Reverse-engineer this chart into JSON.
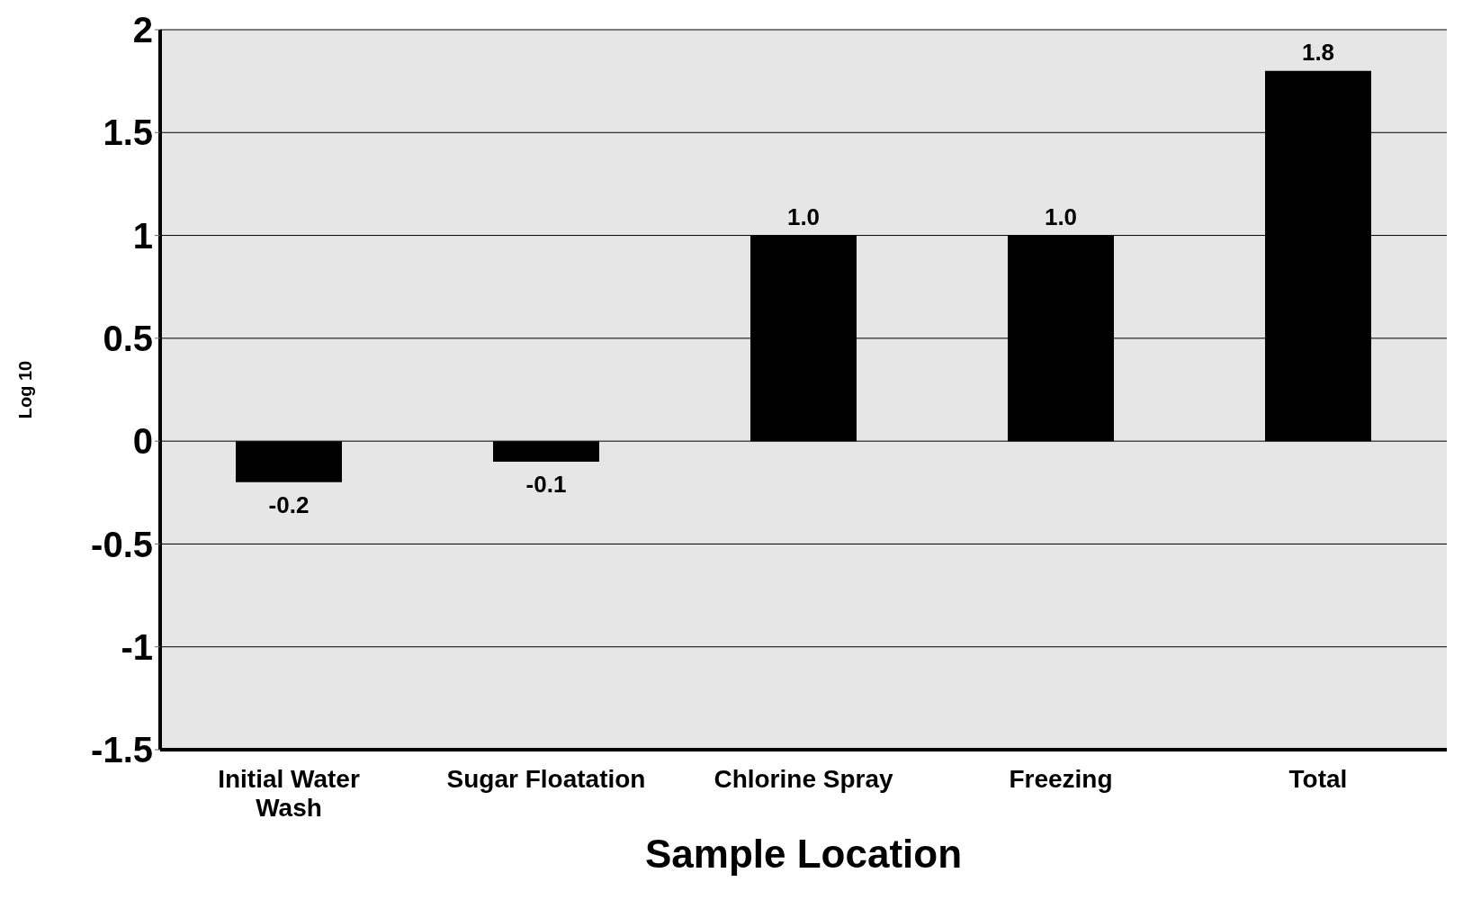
{
  "chart_data": {
    "type": "bar",
    "xlabel": "Sample Location",
    "ylabel": "Log 10",
    "categories": [
      "Initial Water Wash",
      "Sugar Floatation",
      "Chlorine Spray",
      "Freezing",
      "Total"
    ],
    "values": [
      -0.2,
      -0.1,
      1.0,
      1.0,
      1.8
    ],
    "value_labels": [
      "-0.2",
      "-0.1",
      "1.0",
      "1.0",
      "1.8"
    ],
    "color": "#000000",
    "ylim": [
      -1.5,
      2
    ],
    "yticks": [
      -1.5,
      -1,
      -0.5,
      0,
      0.5,
      1,
      1.5,
      2
    ],
    "grid": "y"
  }
}
